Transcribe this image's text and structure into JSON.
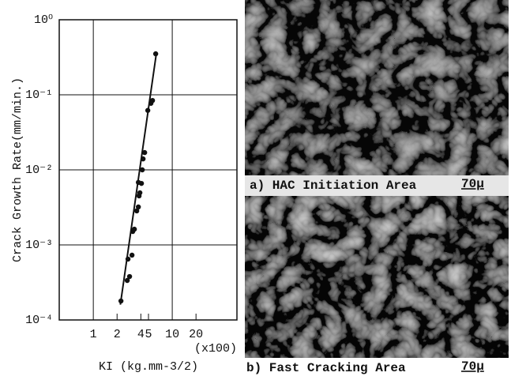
{
  "chart_data": {
    "type": "scatter",
    "y_label": "Crack Growth Rate(mm/min.)",
    "x_label": "KI (kg.mm-3/2)",
    "x_multiplier": "(x100)",
    "log_x": true,
    "log_y": true,
    "grid": true,
    "color": "#111111",
    "xlim": [
      0.37,
      66
    ],
    "ylim": [
      0.0001,
      1
    ],
    "xticks": [
      1,
      2,
      4,
      5,
      10,
      20
    ],
    "yticks": [
      {
        "value": 1,
        "label": "10⁰"
      },
      {
        "value": 0.1,
        "label": "10⁻¹"
      },
      {
        "value": 0.01,
        "label": "10⁻²"
      },
      {
        "value": 0.001,
        "label": "10⁻³"
      },
      {
        "value": 0.0001,
        "label": "10⁻⁴"
      }
    ],
    "x": [
      2.24,
      2.69,
      2.88,
      2.75,
      3.09,
      3.16,
      3.31,
      3.55,
      3.72,
      3.8,
      3.89,
      3.72,
      4.07,
      4.17,
      4.27,
      4.47,
      4.9,
      5.37,
      5.62,
      6.17
    ],
    "values": [
      0.000179,
      0.000336,
      0.000379,
      0.000647,
      0.00073,
      0.00151,
      0.00162,
      0.00284,
      0.0032,
      0.0045,
      0.00495,
      0.0068,
      0.0066,
      0.01,
      0.014,
      0.017,
      0.062,
      0.077,
      0.084,
      0.352
    ],
    "fit_line": {
      "x": [
        2.2,
        6.3
      ],
      "values": [
        0.00016,
        0.36
      ]
    }
  },
  "panels": [
    {
      "caption": "a) HAC Initiation Area",
      "scale_label": "70μ"
    },
    {
      "caption": "b) Fast Cracking Area",
      "scale_label": "70μ"
    }
  ]
}
